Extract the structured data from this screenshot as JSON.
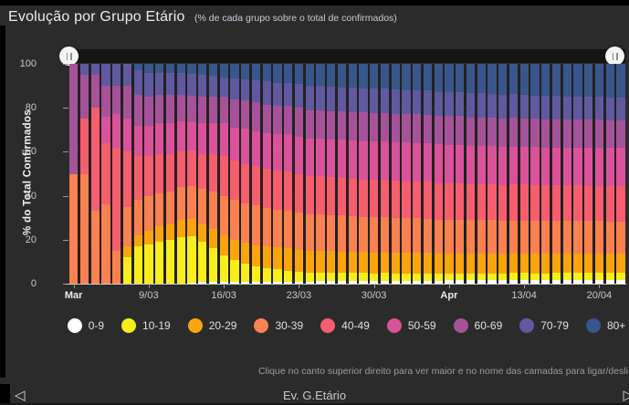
{
  "header": {
    "title": "Evolução por Grupo Etário",
    "subtitle": "(% de cada grupo sobre o total de confirmados)"
  },
  "chart_data": {
    "type": "bar",
    "stacked": true,
    "stacked_percent": true,
    "title": "Evolução por Grupo Etário",
    "xlabel": "",
    "ylabel": "% do Total Confirmados",
    "ylim": [
      0,
      100
    ],
    "y_ticks": [
      0,
      20,
      40,
      60,
      80,
      100
    ],
    "grid": false,
    "legend_position": "bottom",
    "categories": [
      "2/03",
      "3/03",
      "4/03",
      "5/03",
      "6/03",
      "7/03",
      "8/03",
      "9/03",
      "10/03",
      "11/03",
      "12/03",
      "13/03",
      "14/03",
      "15/03",
      "16/03",
      "17/03",
      "18/03",
      "19/03",
      "20/03",
      "21/03",
      "22/03",
      "23/03",
      "24/03",
      "25/03",
      "26/03",
      "27/03",
      "28/03",
      "29/03",
      "30/03",
      "31/03",
      "1/04",
      "2/04",
      "3/04",
      "4/04",
      "5/04",
      "6/04",
      "7/04",
      "8/04",
      "9/04",
      "10/04",
      "11/04",
      "12/04",
      "13/04",
      "14/04",
      "15/04",
      "16/04",
      "17/04",
      "18/04",
      "19/04",
      "20/04",
      "21/04",
      "22/04"
    ],
    "x_ticks": [
      {
        "index": 0,
        "label": "Mar",
        "bold": true
      },
      {
        "index": 7,
        "label": "9/03",
        "bold": false
      },
      {
        "index": 14,
        "label": "16/03",
        "bold": false
      },
      {
        "index": 21,
        "label": "23/03",
        "bold": false
      },
      {
        "index": 28,
        "label": "30/03",
        "bold": false
      },
      {
        "index": 35,
        "label": "Apr",
        "bold": true
      },
      {
        "index": 42,
        "label": "13/04",
        "bold": false
      },
      {
        "index": 49,
        "label": "20/04",
        "bold": false
      }
    ],
    "series": [
      {
        "name": "0-9",
        "color": "#ffffff",
        "values": [
          0,
          0,
          0,
          0,
          0,
          0,
          0,
          0,
          0,
          0,
          0,
          0.5,
          1,
          1,
          1,
          1,
          1,
          1,
          1,
          1,
          1,
          1,
          1,
          1.1,
          1.1,
          1.1,
          1.2,
          1.2,
          1.2,
          1.3,
          1.3,
          1.3,
          1.4,
          1.4,
          1.4,
          1.5,
          1.5,
          1.5,
          1.6,
          1.6,
          1.6,
          1.7,
          1.7,
          1.7,
          1.7,
          1.8,
          1.8,
          1.8,
          1.8,
          1.8,
          1.8,
          1.8
        ]
      },
      {
        "name": "10-19",
        "color": "#f7ee1b",
        "values": [
          0,
          0,
          0,
          0,
          0,
          12,
          17,
          18,
          19,
          20,
          21,
          21,
          18,
          15,
          12,
          10,
          8,
          7,
          6,
          5.5,
          5,
          4.5,
          4,
          4,
          3.9,
          3.8,
          3.7,
          3.6,
          3.5,
          3.5,
          3.4,
          3.4,
          3.3,
          3.3,
          3.2,
          3.2,
          3.2,
          3.1,
          3.1,
          3.1,
          3.1,
          3.1,
          3.1,
          3,
          3,
          3,
          3,
          3,
          3,
          3,
          3,
          3
        ]
      },
      {
        "name": "20-29",
        "color": "#fba40d",
        "values": [
          0,
          0,
          0,
          0,
          0,
          5,
          5,
          6,
          7,
          7,
          8,
          8,
          8,
          9,
          9,
          9,
          9.5,
          9.5,
          10,
          10,
          10,
          10,
          10,
          10,
          9.9,
          9.8,
          9.7,
          9.6,
          9.5,
          9.5,
          9.4,
          9.4,
          9.3,
          9.3,
          9.2,
          9.2,
          9.2,
          9.1,
          9.1,
          9.1,
          9,
          9,
          9,
          9,
          9,
          9,
          9,
          9,
          9,
          9,
          9,
          9
        ]
      },
      {
        "name": "30-39",
        "color": "#fb8150",
        "values": [
          50,
          50,
          33,
          36,
          15,
          18,
          16,
          16,
          15,
          15,
          15,
          15,
          16,
          17,
          18,
          18,
          18,
          18,
          17.5,
          17,
          17,
          17,
          16.5,
          16.5,
          16.4,
          16.3,
          16.2,
          16.1,
          16,
          16,
          15.9,
          15.8,
          15.7,
          15.6,
          15.4,
          15.3,
          15.3,
          15.2,
          15.1,
          15.1,
          15,
          15,
          15,
          14.9,
          14.9,
          14.8,
          14.8,
          14.7,
          14.7,
          14.7,
          14.6,
          14.6
        ]
      },
      {
        "name": "40-49",
        "color": "#f65e6d",
        "values": [
          0,
          25,
          47,
          28,
          47,
          25,
          20,
          18,
          18,
          17,
          16,
          16,
          16,
          17,
          18,
          18,
          18,
          18,
          18,
          18,
          18,
          17.5,
          17.5,
          17.4,
          17.3,
          17.2,
          17.1,
          17,
          17,
          16.9,
          16.9,
          16.8,
          16.8,
          16.7,
          16.6,
          16.5,
          16.5,
          16.4,
          16.4,
          16.3,
          16.3,
          16.3,
          16.3,
          16.2,
          16.2,
          16.2,
          16.2,
          16.2,
          16.1,
          16.1,
          16.1,
          16.1
        ]
      },
      {
        "name": "50-59",
        "color": "#da529a",
        "values": [
          0,
          0,
          0,
          12,
          15,
          15,
          14,
          14,
          14,
          14,
          14,
          13,
          14,
          14,
          15,
          15,
          16,
          16,
          16,
          16.5,
          17,
          17,
          17,
          17,
          17.1,
          17.2,
          17.3,
          17.4,
          17.5,
          17.5,
          17.5,
          17.5,
          17.5,
          17.5,
          17.5,
          17.5,
          17.5,
          17.4,
          17.4,
          17.4,
          17.3,
          17.3,
          17.3,
          17.3,
          17.2,
          17.2,
          17.2,
          17.2,
          17.2,
          17.2,
          17.2,
          17.2
        ]
      },
      {
        "name": "60-69",
        "color": "#a65299",
        "values": [
          50,
          20,
          15,
          14,
          13,
          15,
          14,
          13,
          13,
          13,
          12,
          12,
          12,
          12,
          12,
          13,
          13,
          13,
          13,
          13,
          13,
          13,
          13,
          13,
          13,
          13,
          13,
          13,
          13,
          13,
          13,
          13,
          13,
          13,
          13,
          13,
          13,
          13,
          13,
          13,
          13,
          13,
          12.9,
          12.9,
          12.9,
          12.9,
          12.8,
          12.8,
          12.8,
          12.8,
          12.8,
          12.8
        ]
      },
      {
        "name": "70-79",
        "color": "#60599f",
        "values": [
          0,
          5,
          5,
          10,
          10,
          10,
          11,
          11,
          10,
          10,
          10,
          10,
          10,
          9.5,
          9,
          9.5,
          9.5,
          10,
          10.5,
          10.5,
          10.5,
          11,
          11,
          11,
          11,
          11,
          11,
          11,
          11,
          11,
          11,
          11,
          11,
          11,
          11,
          11,
          11,
          10.9,
          10.9,
          10.9,
          10.8,
          10.8,
          10.8,
          10.7,
          10.6,
          10.5,
          10.5,
          10.4,
          10.4,
          10.3,
          10.2,
          10.2
        ]
      },
      {
        "name": "80+",
        "color": "#38568a",
        "values": [
          0,
          0,
          0,
          0,
          0,
          0,
          3,
          4,
          4,
          4,
          4,
          4.5,
          5,
          5.5,
          6,
          6.5,
          7,
          7.5,
          8,
          8.5,
          8.5,
          9,
          10,
          10.1,
          10.4,
          10.6,
          10.8,
          11.1,
          11.3,
          11.3,
          11.6,
          11.8,
          12,
          12.2,
          12.7,
          12.8,
          12.8,
          13.4,
          13.4,
          13.5,
          13.9,
          13.8,
          13.9,
          14.3,
          14.5,
          14.6,
          14.7,
          14.9,
          15,
          15.1,
          15.3,
          15.3
        ]
      }
    ]
  },
  "footer": {
    "hint": "Clique no canto superior direito para ver maior e no nome das camadas para ligar/desli",
    "page_label": "Ev. G.Etário",
    "prev_icon": "◁",
    "next_icon": "▷"
  }
}
